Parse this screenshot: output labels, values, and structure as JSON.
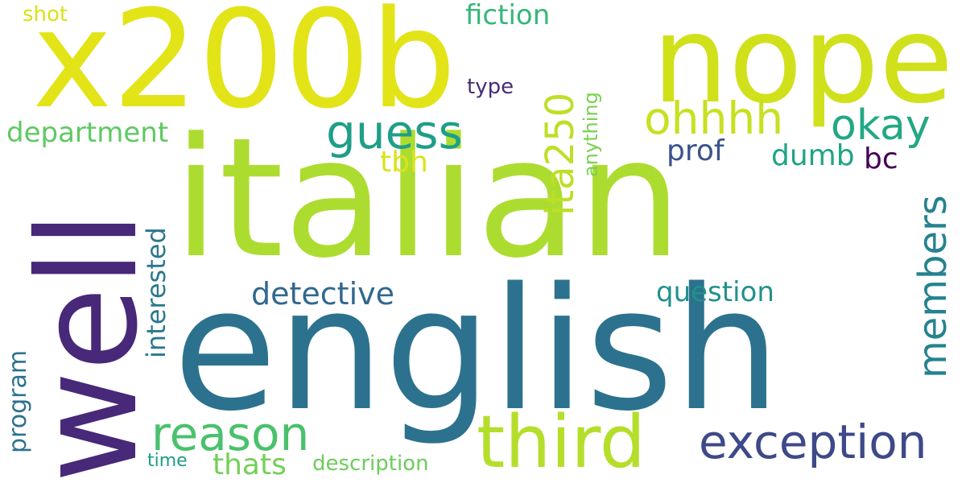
{
  "background": "#ffffff",
  "colormap": "viridis",
  "words": {
    "italian": {
      "text": "italian",
      "color": "#addc30"
    },
    "english": {
      "text": "english",
      "color": "#2c728e"
    },
    "x200b": {
      "text": "x200b",
      "color": "#e2e418"
    },
    "nope": {
      "text": "nope",
      "color": "#d0e11c"
    },
    "well": {
      "text": "well",
      "color": "#482878"
    },
    "third": {
      "text": "third",
      "color": "#b5de2b"
    },
    "exception": {
      "text": "exception",
      "color": "#3e4989"
    },
    "reason": {
      "text": "reason",
      "color": "#4ac16d"
    },
    "guess": {
      "text": "guess",
      "color": "#1f9e89"
    },
    "ohhhh": {
      "text": "ohhhh",
      "color": "#c8e020"
    },
    "okay": {
      "text": "okay",
      "color": "#22a884"
    },
    "ita250": {
      "text": "ita250",
      "color": "#bddf26"
    },
    "members": {
      "text": "members",
      "color": "#26828e"
    },
    "department": {
      "text": "department",
      "color": "#5ec962"
    },
    "fiction": {
      "text": "fiction",
      "color": "#35b779"
    },
    "detective": {
      "text": "detective",
      "color": "#31688e"
    },
    "question": {
      "text": "question",
      "color": "#21918c"
    },
    "prof": {
      "text": "prof",
      "color": "#3b528b"
    },
    "dumb": {
      "text": "dumb",
      "color": "#20a486"
    },
    "bc": {
      "text": "bc",
      "color": "#440154"
    },
    "tbh": {
      "text": "tbh",
      "color": "#dae319"
    },
    "interested": {
      "text": "interested",
      "color": "#2a788e"
    },
    "program": {
      "text": "program",
      "color": "#2c728e"
    },
    "anything": {
      "text": "anything",
      "color": "#7ad151"
    },
    "type": {
      "text": "type",
      "color": "#472c7a"
    },
    "shot": {
      "text": "shot",
      "color": "#d8e219"
    },
    "thats": {
      "text": "thats",
      "color": "#73d056"
    },
    "description": {
      "text": "description",
      "color": "#6ccd5a"
    },
    "time": {
      "text": "time",
      "color": "#1e9c89"
    }
  }
}
